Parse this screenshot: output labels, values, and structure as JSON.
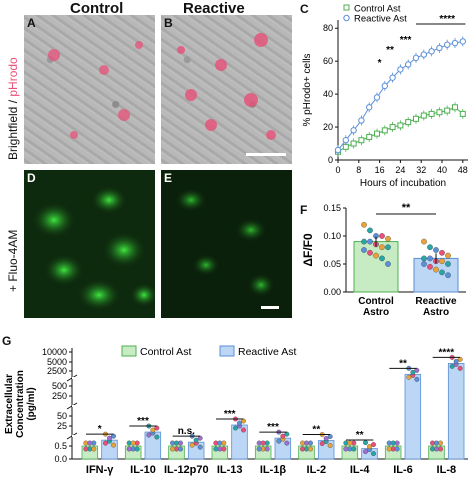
{
  "panels": {
    "A": "A",
    "B": "B",
    "C": "C",
    "D": "D",
    "E": "E",
    "F": "F",
    "G": "G"
  },
  "micrograph_titles": {
    "control": "Control",
    "reactive": "Reactive"
  },
  "row_labels": {
    "top_prefix": "Brightfield / ",
    "top_suffix": "pHrodo",
    "bottom": "+ Fluo-4AM"
  },
  "colors": {
    "control": "#4caf50",
    "reactive": "#5b8fd6",
    "control_fill": "#c7ecc4",
    "reactive_fill": "#bcd6f5",
    "pink": "#e8507a"
  },
  "chart_data": [
    {
      "id": "C",
      "type": "line",
      "xlabel": "Hours of incubation",
      "ylabel": "% pHrodo+ cells",
      "xticks": [
        0,
        8,
        16,
        24,
        32,
        40,
        48
      ],
      "yticks": [
        0,
        20,
        40,
        60,
        80
      ],
      "xlim": [
        0,
        50
      ],
      "ylim": [
        0,
        85
      ],
      "x": [
        0,
        3,
        6,
        9,
        12,
        15,
        18,
        21,
        24,
        27,
        30,
        33,
        36,
        39,
        42,
        45,
        48
      ],
      "series": [
        {
          "name": "Control Ast",
          "values": [
            5,
            8,
            10,
            12,
            14,
            16,
            18,
            20,
            21,
            23,
            25,
            27,
            28,
            29,
            30,
            32,
            28
          ]
        },
        {
          "name": "Reactive Ast",
          "values": [
            6,
            12,
            18,
            24,
            32,
            38,
            45,
            50,
            55,
            58,
            62,
            64,
            66,
            68,
            70,
            71,
            72
          ]
        }
      ],
      "significance": [
        "*",
        "**",
        "***",
        "****"
      ],
      "legend": "top-left"
    },
    {
      "id": "F",
      "type": "bar",
      "categories": [
        "Control\nAstro",
        "Reactive\nAstro"
      ],
      "category_lines": [
        [
          "Control",
          "Astro"
        ],
        [
          "Reactive",
          "Astro"
        ]
      ],
      "values": [
        0.09,
        0.06
      ],
      "ylabel": "ΔF/F0",
      "yticks": [
        0.0,
        0.05,
        0.1,
        0.15
      ],
      "ytick_labels": [
        "0.00",
        "0.05",
        "0.10",
        "0.15"
      ],
      "ylim": [
        0,
        0.15
      ],
      "significance": "**",
      "points": [
        [
          0.12,
          0.11,
          0.1,
          0.1,
          0.095,
          0.09,
          0.09,
          0.085,
          0.08,
          0.08,
          0.075,
          0.07,
          0.065,
          0.06,
          0.05
        ],
        [
          0.09,
          0.08,
          0.075,
          0.07,
          0.065,
          0.06,
          0.06,
          0.055,
          0.055,
          0.05,
          0.05,
          0.045,
          0.04,
          0.035,
          0.03
        ]
      ]
    },
    {
      "id": "G",
      "type": "bar",
      "ylabel_lines": [
        "Extracellular",
        "Concentration",
        "(pg/ml)"
      ],
      "ytick_labels": [
        "10000",
        "5000",
        "2500",
        "500",
        "250",
        "50",
        "25",
        "0.5",
        "0.0"
      ],
      "categories": [
        "IFN-γ",
        "IL-10",
        "IL-12p70",
        "IL-13",
        "IL-1β",
        "IL-2",
        "IL-4",
        "IL-6",
        "IL-8"
      ],
      "series": [
        {
          "name": "Control Ast",
          "values": [
            0.5,
            0.5,
            0.5,
            0.5,
            0.5,
            0.5,
            0.5,
            0.5,
            0.5
          ]
        },
        {
          "name": "Reactive Ast",
          "values": [
            15,
            35,
            10,
            70,
            20,
            14,
            0.4,
            2200,
            5500
          ]
        }
      ],
      "significance": [
        "*",
        "***",
        "n.s.",
        "***",
        "***",
        "**",
        "**",
        "**",
        "****"
      ],
      "legend": "top"
    }
  ]
}
